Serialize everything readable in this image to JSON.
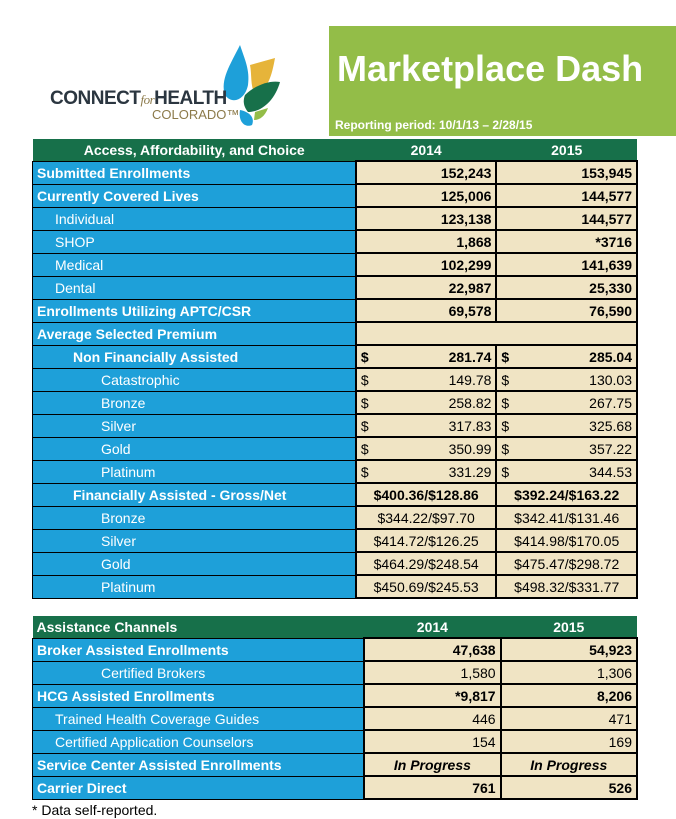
{
  "brand": {
    "name": "CONNECT",
    "for": "for",
    "health": "HEALTH",
    "state": "COLORADO™"
  },
  "header": {
    "title": "Marketplace Dash",
    "period": "Reporting period: 10/1/13  – 2/28/15"
  },
  "colors": {
    "green": "#93bd48",
    "dark_green": "#17704a",
    "blue": "#1ea0d9",
    "beige": "#f0e4c4"
  },
  "table1": {
    "headers": [
      "Access, Affordability, and Choice",
      "2014",
      "2015"
    ],
    "rows": [
      {
        "label": "Submitted Enrollments",
        "level": 0,
        "bold": true,
        "v2014": "152,243",
        "v2015": "153,945"
      },
      {
        "label": "Currently Covered Lives",
        "level": 0,
        "bold": true,
        "v2014": "125,006",
        "v2015": "144,577"
      },
      {
        "label": "Individual",
        "level": 1,
        "v2014": "123,138",
        "v2015": "144,577",
        "vbold": true
      },
      {
        "label": "SHOP",
        "level": 1,
        "v2014": "1,868",
        "v2015": "*3716",
        "vbold": true
      },
      {
        "label": "Medical",
        "level": 1,
        "v2014": "102,299",
        "v2015": "141,639",
        "vbold": true
      },
      {
        "label": "Dental",
        "level": 1,
        "v2014": "22,987",
        "v2015": "25,330",
        "vbold": true
      },
      {
        "label": "Enrollments Utilizing APTC/CSR",
        "level": 0,
        "bold": true,
        "v2014": "69,578",
        "v2015": "76,590"
      },
      {
        "label": "Average Selected Premium",
        "level": 0,
        "bold": true,
        "span": true
      },
      {
        "label": "Non Financially Assisted",
        "level": 2,
        "bold": true,
        "dollar": true,
        "v2014": "281.74",
        "v2015": "285.04"
      },
      {
        "label": "Catastrophic",
        "level": 3,
        "dollar": true,
        "v2014": "149.78",
        "v2015": "130.03"
      },
      {
        "label": "Bronze",
        "level": 3,
        "dollar": true,
        "v2014": "258.82",
        "v2015": "267.75"
      },
      {
        "label": "Silver",
        "level": 3,
        "dollar": true,
        "v2014": "317.83",
        "v2015": "325.68"
      },
      {
        "label": "Gold",
        "level": 3,
        "dollar": true,
        "v2014": "350.99",
        "v2015": "357.22"
      },
      {
        "label": "Platinum",
        "level": 3,
        "dollar": true,
        "v2014": "331.29",
        "v2015": "344.53"
      },
      {
        "label": "Financially Assisted - Gross/Net",
        "level": 2,
        "bold": true,
        "center": true,
        "v2014": "$400.36/$128.86",
        "v2015": "$392.24/$163.22"
      },
      {
        "label": "Bronze",
        "level": 3,
        "center": true,
        "v2014": "$344.22/$97.70",
        "v2015": "$342.41/$131.46"
      },
      {
        "label": "Silver",
        "level": 3,
        "center": true,
        "v2014": "$414.72/$126.25",
        "v2015": "$414.98/$170.05"
      },
      {
        "label": "Gold",
        "level": 3,
        "center": true,
        "v2014": "$464.29/$248.54",
        "v2015": "$475.47/$298.72"
      },
      {
        "label": "Platinum",
        "level": 3,
        "center": true,
        "v2014": "$450.69/$245.53",
        "v2015": "$498.32/$331.77"
      }
    ]
  },
  "table2": {
    "headers": [
      "Assistance Channels",
      "2014",
      "2015"
    ],
    "rows": [
      {
        "label": "Broker Assisted Enrollments",
        "level": 0,
        "bold": true,
        "v2014": "47,638",
        "v2015": "54,923"
      },
      {
        "label": "Certified Brokers",
        "level": 3,
        "v2014": "1,580",
        "v2015": "1,306"
      },
      {
        "label": "HCG Assisted Enrollments",
        "level": 0,
        "bold": true,
        "v2014": "*9,817",
        "v2015": "8,206"
      },
      {
        "label": "Trained Health Coverage Guides",
        "level": 1,
        "v2014": "446",
        "v2015": "471"
      },
      {
        "label": "Certified Application Counselors",
        "level": 1,
        "v2014": "154",
        "v2015": "169"
      },
      {
        "label": "Service Center Assisted Enrollments",
        "level": 0,
        "bold": true,
        "italic": true,
        "center": true,
        "v2014": "In Progress",
        "v2015": "In Progress"
      },
      {
        "label": "Carrier Direct",
        "level": 0,
        "bold": true,
        "v2014": "761",
        "v2015": "526"
      }
    ]
  },
  "footnote": "* Data self-reported."
}
